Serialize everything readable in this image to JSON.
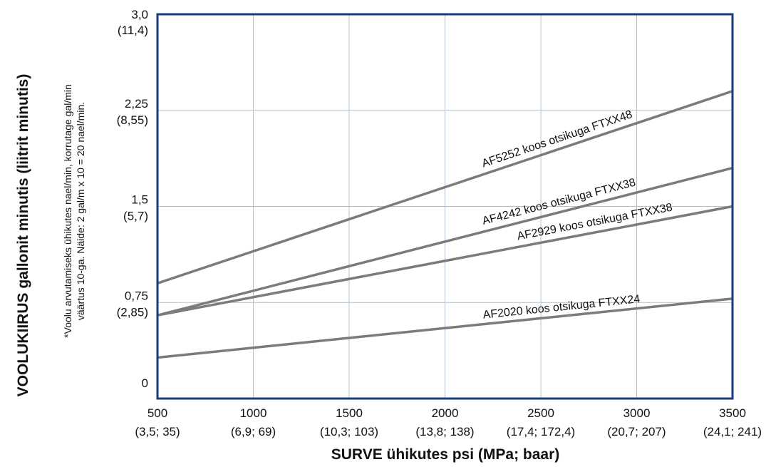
{
  "chart_data": {
    "type": "line",
    "ylabel": "VOOLUKIIRUS gallonit minutis (liitrit minutis)",
    "xlabel": "SURVE ühikutes psi (MPa; baar)",
    "note_lines": [
      "*Voolu arvutamiseks ühikutes nael/min, korrutage gal/min",
      "väärtus 10-ga. Näide: 2 gal/m x 10 = 20 nael/min."
    ],
    "xlim": [
      500,
      3500
    ],
    "ylim": [
      0,
      3.0
    ],
    "x_ticks": [
      {
        "value": 500,
        "line1": "500",
        "line2": "(3,5; 35)"
      },
      {
        "value": 1000,
        "line1": "1000",
        "line2": "(6,9; 69)"
      },
      {
        "value": 1500,
        "line1": "1500",
        "line2": "(10,3; 103)"
      },
      {
        "value": 2000,
        "line1": "2000",
        "line2": "(13,8; 138)"
      },
      {
        "value": 2500,
        "line1": "2500",
        "line2": "(17,4; 172,4)"
      },
      {
        "value": 3000,
        "line1": "3000",
        "line2": "(20,7; 207)"
      },
      {
        "value": 3500,
        "line1": "3500",
        "line2": "(24,1; 241)"
      }
    ],
    "y_ticks": [
      {
        "value": 0,
        "line1": "0",
        "line2": ""
      },
      {
        "value": 0.75,
        "line1": "0,75",
        "line2": "(2,85)"
      },
      {
        "value": 1.5,
        "line1": "1,5",
        "line2": "(5,7)"
      },
      {
        "value": 2.25,
        "line1": "2,25",
        "line2": "(8,55)"
      },
      {
        "value": 3.0,
        "line1": "3,0",
        "line2": "(11,4)"
      }
    ],
    "grid": true,
    "series": [
      {
        "name": "AF5252 koos otsikuga FTXX48",
        "x": [
          500,
          3500
        ],
        "y": [
          0.9,
          2.4
        ],
        "color": "#7b7b7b"
      },
      {
        "name": "AF4242 koos otsikuga FTXX38",
        "x": [
          500,
          3500
        ],
        "y": [
          0.65,
          1.8
        ],
        "color": "#7b7b7b"
      },
      {
        "name": "AF2929 koos otsikuga FTXX38",
        "x": [
          500,
          3500
        ],
        "y": [
          0.65,
          1.5
        ],
        "color": "#7b7b7b"
      },
      {
        "name": "AF2020 koos otsikuga FTXX24",
        "x": [
          500,
          3500
        ],
        "y": [
          0.32,
          0.78
        ],
        "color": "#7b7b7b"
      }
    ],
    "colors": {
      "frame": "#163e7a",
      "grid": "#b4c0d0",
      "line": "#7b7b7b"
    }
  }
}
